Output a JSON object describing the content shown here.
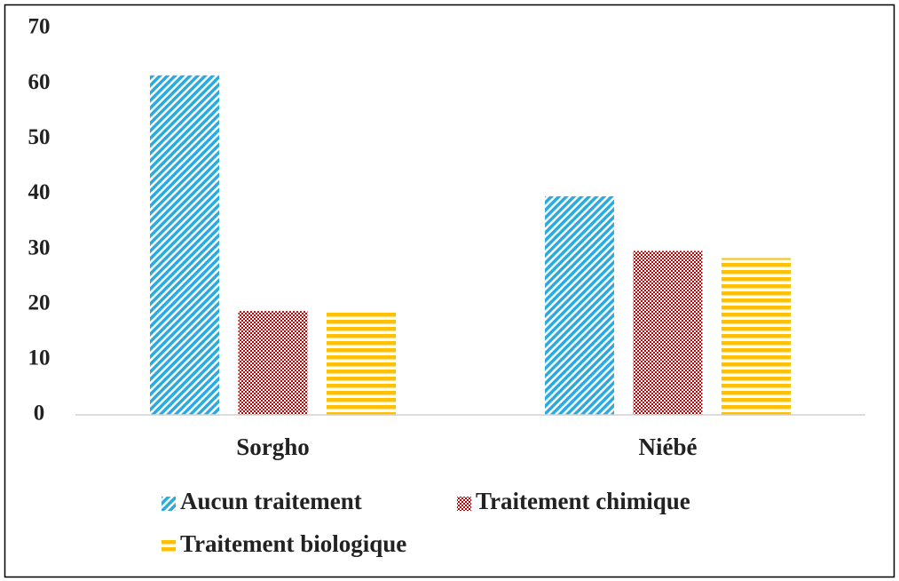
{
  "chart_data": {
    "type": "bar",
    "categories": [
      "Sorgho",
      "Niébé"
    ],
    "series": [
      {
        "name": "Aucun traitement",
        "color": "#29abe2",
        "pattern": "diagonal",
        "values": [
          61.5,
          39.6
        ]
      },
      {
        "name": "Traitement chimique",
        "color": "#c00000",
        "pattern": "dots",
        "values": [
          18.8,
          29.7
        ]
      },
      {
        "name": "Traitement biologique",
        "color": "#ffc000",
        "pattern": "horizontal",
        "values": [
          18.6,
          28.4
        ]
      }
    ],
    "ylim": [
      0,
      70
    ],
    "yticks": [
      0,
      10,
      20,
      30,
      40,
      50,
      60,
      70
    ],
    "grid": false
  }
}
